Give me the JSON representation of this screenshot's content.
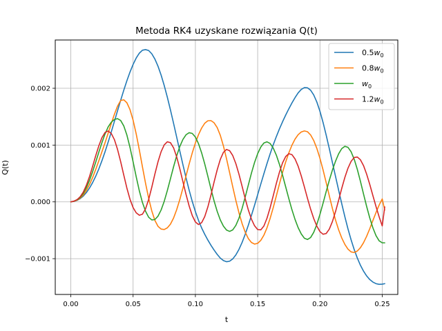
{
  "chart_data": {
    "type": "line",
    "title": "Metoda RK4 uzyskane rozwiązania Q(t)",
    "xlabel": "t",
    "ylabel": "Q(t)",
    "xlim": [
      -0.0125,
      0.2625
    ],
    "ylim": [
      -0.00163,
      0.00285
    ],
    "xticks": [
      0.0,
      0.05,
      0.1,
      0.15,
      0.2,
      0.25
    ],
    "xtick_labels": [
      "0.00",
      "0.05",
      "0.10",
      "0.15",
      "0.20",
      "0.25"
    ],
    "yticks": [
      -0.001,
      0.0,
      0.001,
      0.002
    ],
    "ytick_labels": [
      "−0.001",
      "0.000",
      "0.001",
      "0.002"
    ],
    "grid": true,
    "legend_position": "top-right",
    "series": [
      {
        "name": "0.5w0",
        "legend_base": "0.5",
        "legend_main": "w",
        "legend_sub": "0",
        "color": "#1f77b4",
        "x": [
          0.0,
          0.0025,
          0.005,
          0.0075,
          0.01,
          0.0125,
          0.015,
          0.0175,
          0.02,
          0.0225,
          0.025,
          0.0275,
          0.03,
          0.0325,
          0.035,
          0.0375,
          0.04,
          0.0425,
          0.045,
          0.0475,
          0.05,
          0.0525,
          0.055,
          0.0575,
          0.06,
          0.0625,
          0.065,
          0.0675,
          0.07,
          0.0725,
          0.075,
          0.0775,
          0.08,
          0.0825,
          0.085,
          0.0875,
          0.09,
          0.0925,
          0.095,
          0.0975,
          0.1,
          0.1025,
          0.105,
          0.1075,
          0.11,
          0.1125,
          0.115,
          0.1175,
          0.12,
          0.1225,
          0.125,
          0.1275,
          0.13,
          0.1325,
          0.135,
          0.1375,
          0.14,
          0.1425,
          0.145,
          0.1475,
          0.15,
          0.1525,
          0.155,
          0.1575,
          0.16,
          0.1625,
          0.165,
          0.1675,
          0.17,
          0.1725,
          0.175,
          0.1775,
          0.18,
          0.1825,
          0.185,
          0.1875,
          0.19,
          0.1925,
          0.195,
          0.1975,
          0.2,
          0.2025,
          0.205,
          0.2075,
          0.21,
          0.2125,
          0.215,
          0.2175,
          0.22,
          0.2225,
          0.225,
          0.2275,
          0.23,
          0.2325,
          0.235,
          0.2375,
          0.24,
          0.2425,
          0.245,
          0.2475,
          0.25,
          0.252
        ],
        "y": [
          0.0,
          1e-05,
          2.7e-05,
          5.7e-05,
          0.000102,
          0.000164,
          0.000243,
          0.000339,
          0.000452,
          0.000581,
          0.000726,
          0.000884,
          0.001054,
          0.001233,
          0.001418,
          0.001604,
          0.001787,
          0.001965,
          0.002132,
          0.002285,
          0.00242,
          0.002533,
          0.002618,
          0.00267,
          0.002681,
          0.002665,
          0.002607,
          0.002514,
          0.002388,
          0.002231,
          0.002047,
          0.001841,
          0.001617,
          0.001381,
          0.001138,
          0.000894,
          0.000654,
          0.000423,
          0.000206,
          7e-06,
          -0.000171,
          -0.000325,
          -0.000458,
          -0.000571,
          -0.000672,
          -0.000764,
          -0.000848,
          -0.000924,
          -0.00099,
          -0.001034,
          -0.001054,
          -0.001044,
          -0.001004,
          -0.000934,
          -0.000836,
          -0.000714,
          -0.000571,
          -0.000411,
          -0.000239,
          -5.9e-05,
          0.000126,
          0.000313,
          0.000496,
          0.000675,
          0.000845,
          0.001004,
          0.00115,
          0.001286,
          0.001411,
          0.001528,
          0.001638,
          0.001741,
          0.001835,
          0.001919,
          0.00198,
          0.002011,
          0.002008,
          0.001966,
          0.001883,
          0.001758,
          0.001595,
          0.001398,
          0.001176,
          0.000938,
          0.000693,
          0.000448,
          0.000205,
          -3.3e-05,
          -0.000262,
          -0.000475,
          -0.000668,
          -0.000839,
          -0.000989,
          -0.001116,
          -0.00122,
          -0.001304,
          -0.001368,
          -0.001412,
          -0.00144,
          -0.001452,
          -0.001449,
          -0.00144
        ]
      },
      {
        "name": "0.8w0",
        "legend_base": "0.8",
        "legend_main": "w",
        "legend_sub": "0",
        "color": "#ff7f0e",
        "x": [
          0.0,
          0.0025,
          0.005,
          0.0075,
          0.01,
          0.0125,
          0.015,
          0.0175,
          0.02,
          0.0225,
          0.025,
          0.0275,
          0.03,
          0.0325,
          0.035,
          0.0375,
          0.04,
          0.0425,
          0.045,
          0.0475,
          0.05,
          0.0525,
          0.055,
          0.0575,
          0.06,
          0.0625,
          0.065,
          0.0675,
          0.07,
          0.0725,
          0.075,
          0.0775,
          0.08,
          0.0825,
          0.085,
          0.0875,
          0.09,
          0.0925,
          0.095,
          0.0975,
          0.1,
          0.1025,
          0.105,
          0.1075,
          0.11,
          0.1125,
          0.115,
          0.1175,
          0.12,
          0.1225,
          0.125,
          0.1275,
          0.13,
          0.1325,
          0.135,
          0.1375,
          0.14,
          0.1425,
          0.145,
          0.1475,
          0.15,
          0.1525,
          0.155,
          0.1575,
          0.16,
          0.1625,
          0.165,
          0.1675,
          0.17,
          0.1725,
          0.175,
          0.1775,
          0.18,
          0.1825,
          0.185,
          0.1875,
          0.19,
          0.1925,
          0.195,
          0.1975,
          0.2,
          0.2025,
          0.205,
          0.2075,
          0.21,
          0.2125,
          0.215,
          0.2175,
          0.22,
          0.2225,
          0.225,
          0.2275,
          0.23,
          0.2325,
          0.235,
          0.2375,
          0.24,
          0.2425,
          0.245,
          0.2475,
          0.25,
          0.252
        ],
        "y": [
          0.0,
          1.1e-05,
          3e-05,
          6.6e-05,
          0.000122,
          0.000202,
          0.000305,
          0.000429,
          0.000571,
          0.000725,
          0.000884,
          0.001042,
          0.001211,
          0.001381,
          0.001543,
          0.001685,
          0.001785,
          0.001797,
          0.001745,
          0.001624,
          0.001438,
          0.001195,
          0.000914,
          0.000617,
          0.000326,
          6.2e-05,
          -0.000159,
          -0.000326,
          -0.000431,
          -0.000479,
          -0.000486,
          -0.000457,
          -0.000391,
          -0.000284,
          -0.000137,
          4.2e-05,
          0.000244,
          0.000457,
          0.000667,
          0.000863,
          0.001037,
          0.001183,
          0.001299,
          0.001384,
          0.001428,
          0.001431,
          0.001393,
          0.001309,
          0.001172,
          0.000985,
          0.00076,
          0.000514,
          0.000264,
          2.4e-05,
          -0.000194,
          -0.000382,
          -0.000533,
          -0.000646,
          -0.000715,
          -0.000743,
          -0.00073,
          -0.000678,
          -0.000586,
          -0.000456,
          -0.000291,
          -0.000101,
          0.000106,
          0.000318,
          0.00052,
          0.000703,
          0.000862,
          0.000997,
          0.001105,
          0.001183,
          0.001231,
          0.001249,
          0.001235,
          0.001179,
          0.001081,
          0.000942,
          0.000767,
          0.000563,
          0.000339,
          0.000107,
          -0.000116,
          -0.000319,
          -0.000492,
          -0.000635,
          -0.000749,
          -0.000832,
          -0.000881,
          -0.000891,
          -0.000865,
          -0.000807,
          -0.000719,
          -0.000605,
          -0.000472,
          -0.000329,
          -0.000188,
          -5.7e-05,
          5.2e-05,
          -0.000145
        ]
      },
      {
        "name": "w0",
        "legend_base": "",
        "legend_main": "w",
        "legend_sub": "0",
        "color": "#2ca02c",
        "x": [
          0.0,
          0.0025,
          0.005,
          0.0075,
          0.01,
          0.0125,
          0.015,
          0.0175,
          0.02,
          0.0225,
          0.025,
          0.0275,
          0.03,
          0.0325,
          0.035,
          0.0375,
          0.04,
          0.0425,
          0.045,
          0.0475,
          0.05,
          0.0525,
          0.055,
          0.0575,
          0.06,
          0.0625,
          0.065,
          0.0675,
          0.07,
          0.0725,
          0.075,
          0.0775,
          0.08,
          0.0825,
          0.085,
          0.0875,
          0.09,
          0.0925,
          0.095,
          0.0975,
          0.1,
          0.1025,
          0.105,
          0.1075,
          0.11,
          0.1125,
          0.115,
          0.1175,
          0.12,
          0.1225,
          0.125,
          0.1275,
          0.13,
          0.1325,
          0.135,
          0.1375,
          0.14,
          0.1425,
          0.145,
          0.1475,
          0.15,
          0.1525,
          0.155,
          0.1575,
          0.16,
          0.1625,
          0.165,
          0.1675,
          0.17,
          0.1725,
          0.175,
          0.1775,
          0.18,
          0.1825,
          0.185,
          0.1875,
          0.19,
          0.1925,
          0.195,
          0.1975,
          0.2,
          0.2025,
          0.205,
          0.2075,
          0.21,
          0.2125,
          0.215,
          0.2175,
          0.22,
          0.2225,
          0.225,
          0.2275,
          0.23,
          0.2325,
          0.235,
          0.2375,
          0.24,
          0.2425,
          0.245,
          0.2475,
          0.25,
          0.252
        ],
        "y": [
          0.0,
          1.2e-05,
          3.4e-05,
          7.7e-05,
          0.000148,
          0.000249,
          0.000379,
          0.000532,
          0.000701,
          0.000876,
          0.001045,
          0.001197,
          0.001321,
          0.001403,
          0.001451,
          0.001465,
          0.001433,
          0.001338,
          0.001177,
          0.000959,
          0.000705,
          0.000441,
          0.000194,
          -1.1e-05,
          -0.000166,
          -0.000271,
          -0.000318,
          -0.000311,
          -0.000251,
          -0.000142,
          1.1e-05,
          0.000201,
          0.000409,
          0.000619,
          0.000812,
          0.000975,
          0.001099,
          0.001182,
          0.001218,
          0.001205,
          0.001141,
          0.001025,
          0.000864,
          0.000668,
          0.000451,
          0.000229,
          1.8e-05,
          -0.000167,
          -0.000317,
          -0.000427,
          -0.000496,
          -0.00052,
          -0.000493,
          -0.000414,
          -0.000286,
          -0.000115,
          8.4e-05,
          0.000297,
          0.000506,
          0.000693,
          0.000848,
          0.000965,
          0.001037,
          0.001057,
          0.001028,
          0.000948,
          0.000822,
          0.000659,
          0.000469,
          0.000264,
          5.8e-05,
          -0.000137,
          -0.000309,
          -0.000454,
          -0.000565,
          -0.00064,
          -0.000662,
          -0.000628,
          -0.000537,
          -0.000398,
          -0.000221,
          -2.4e-05,
          0.000181,
          0.000379,
          0.000559,
          0.000716,
          0.000846,
          0.000938,
          0.000978,
          0.00096,
          0.000883,
          0.000751,
          0.000572,
          0.000362,
          0.000138,
          -8.2e-05,
          -0.000284,
          -0.000457,
          -0.000594,
          -0.000685,
          -0.000721,
          -0.000721
        ]
      },
      {
        "name": "1.2w0",
        "legend_base": "1.2",
        "legend_main": "w",
        "legend_sub": "0",
        "color": "#d62728",
        "x": [
          0.0,
          0.0025,
          0.005,
          0.0075,
          0.01,
          0.0125,
          0.015,
          0.0175,
          0.02,
          0.0225,
          0.025,
          0.0275,
          0.03,
          0.0325,
          0.035,
          0.0375,
          0.04,
          0.0425,
          0.045,
          0.0475,
          0.05,
          0.0525,
          0.055,
          0.0575,
          0.06,
          0.0625,
          0.065,
          0.0675,
          0.07,
          0.0725,
          0.075,
          0.0775,
          0.08,
          0.0825,
          0.085,
          0.0875,
          0.09,
          0.0925,
          0.095,
          0.0975,
          0.1,
          0.1025,
          0.105,
          0.1075,
          0.11,
          0.1125,
          0.115,
          0.1175,
          0.12,
          0.1225,
          0.125,
          0.1275,
          0.13,
          0.1325,
          0.135,
          0.1375,
          0.14,
          0.1425,
          0.145,
          0.1475,
          0.15,
          0.1525,
          0.155,
          0.1575,
          0.16,
          0.1625,
          0.165,
          0.1675,
          0.17,
          0.1725,
          0.175,
          0.1775,
          0.18,
          0.1825,
          0.185,
          0.1875,
          0.19,
          0.1925,
          0.195,
          0.1975,
          0.2,
          0.2025,
          0.205,
          0.2075,
          0.21,
          0.2125,
          0.215,
          0.2175,
          0.22,
          0.2225,
          0.225,
          0.2275,
          0.23,
          0.2325,
          0.235,
          0.2375,
          0.24,
          0.2425,
          0.245,
          0.2475,
          0.25,
          0.252
        ],
        "y": [
          0.0,
          1.3e-05,
          3.9e-05,
          9e-05,
          0.000172,
          0.000293,
          0.000446,
          0.000625,
          0.000813,
          0.000988,
          0.001131,
          0.001223,
          0.001248,
          0.001204,
          0.001095,
          0.000924,
          0.000709,
          0.000473,
          0.000243,
          4.6e-05,
          -0.000101,
          -0.000193,
          -0.000236,
          -0.000217,
          -0.000123,
          4.4e-05,
          0.000258,
          0.000491,
          0.000707,
          0.000884,
          0.001004,
          0.001058,
          0.001042,
          0.000951,
          0.000791,
          0.000583,
          0.000355,
          0.000131,
          -7.3e-05,
          -0.000241,
          -0.000354,
          -0.000399,
          -0.000367,
          -0.000259,
          -9e-05,
          0.000119,
          0.000348,
          0.000563,
          0.000747,
          0.000872,
          0.000923,
          0.000901,
          0.000815,
          0.000672,
          0.000486,
          0.000274,
          5.6e-05,
          -0.000142,
          -0.000304,
          -0.000421,
          -0.000487,
          -0.000493,
          -0.000425,
          -0.000287,
          -0.000103,
          0.000109,
          0.000325,
          0.000524,
          0.000687,
          0.000798,
          0.000848,
          0.000832,
          0.000756,
          0.000627,
          0.000457,
          0.000263,
          6.1e-05,
          -0.000128,
          -0.000293,
          -0.000427,
          -0.000523,
          -0.00057,
          -0.000557,
          -0.00048,
          -0.000347,
          -0.000172,
          2.9e-05,
          0.000238,
          0.000431,
          0.000593,
          0.000713,
          0.000781,
          0.00079,
          0.000741,
          0.000638,
          0.000487,
          0.000306,
          0.000111,
          -8.2e-05,
          -0.000262,
          -0.000424,
          -8.8e-05
        ]
      }
    ]
  }
}
